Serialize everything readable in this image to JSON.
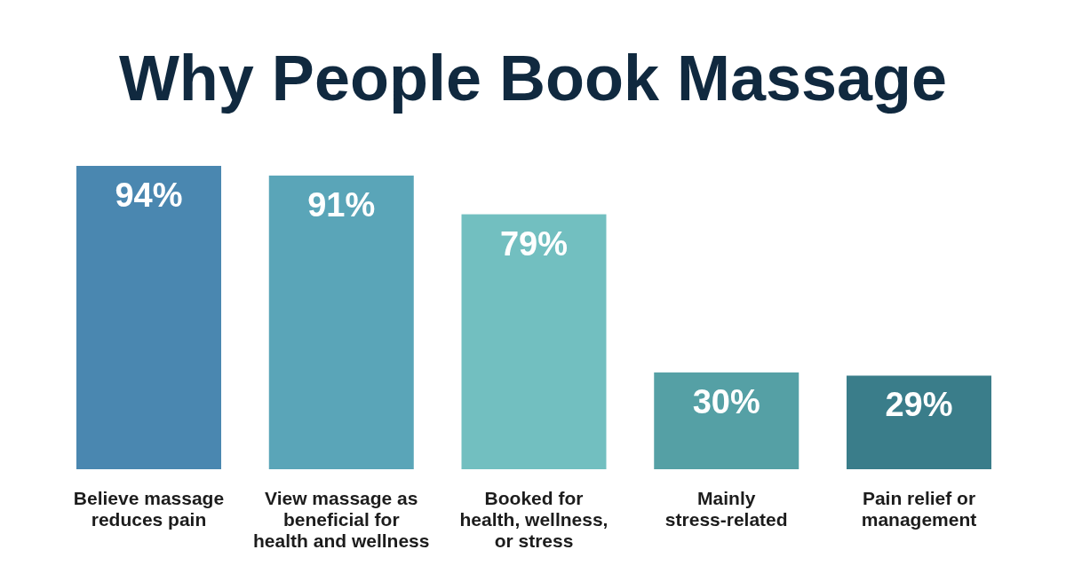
{
  "chart_data": {
    "type": "bar",
    "title": "Why People Book Massage",
    "categories": [
      "Believe massage\nreduces pain",
      "View massage as\nbeneficial for\nhealth and wellness",
      "Booked for\nhealth, wellness,\nor stress",
      "Mainly\nstress-related",
      "Pain relief or\nmanagement"
    ],
    "values": [
      94,
      91,
      79,
      30,
      29
    ],
    "colors": [
      "#4a87b0",
      "#5aa5b8",
      "#72bfc0",
      "#55a0a5",
      "#3a7d8a"
    ],
    "value_labels": [
      "94%",
      "91%",
      "79%",
      "30%",
      "29%"
    ],
    "tick_labels": "x",
    "grid": false,
    "legend": false
  }
}
